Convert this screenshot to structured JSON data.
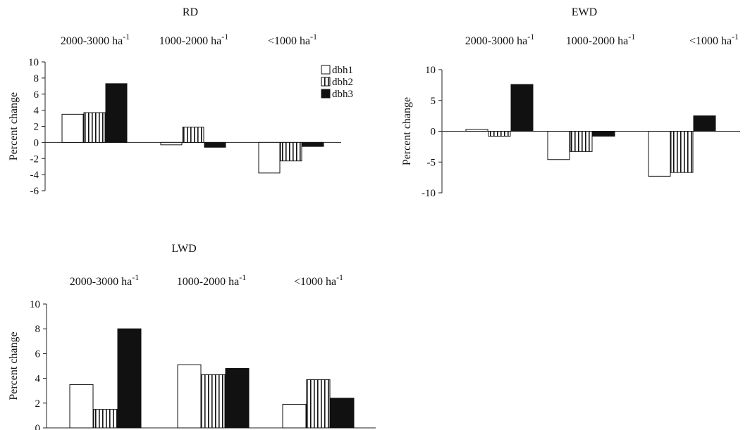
{
  "chart_data": [
    {
      "type": "bar",
      "title": "RD",
      "categories": [
        "2000-3000 ha",
        "1000-2000 ha",
        "<1000 ha"
      ],
      "category_superscript": "-1",
      "ylabel": "Percent change",
      "ylim": [
        -6,
        10
      ],
      "yticks": [
        -6,
        -4,
        -2,
        0,
        2,
        4,
        6,
        8,
        10
      ],
      "legend": "top-right",
      "series": [
        {
          "name": "dbh1",
          "fill": "white",
          "values": [
            3.5,
            -0.3,
            -3.8
          ]
        },
        {
          "name": "dbh2",
          "fill": "vertical-stripes",
          "values": [
            3.7,
            1.9,
            -2.3
          ]
        },
        {
          "name": "dbh3",
          "fill": "black",
          "values": [
            7.3,
            -0.6,
            -0.5
          ]
        }
      ]
    },
    {
      "type": "bar",
      "title": "EWD",
      "categories": [
        "2000-3000 ha",
        "1000-2000 ha",
        "<1000 ha"
      ],
      "category_superscript": "-1",
      "ylabel": "Percent change",
      "ylim": [
        -10,
        10
      ],
      "yticks": [
        -10,
        -5,
        0,
        5,
        10
      ],
      "series": [
        {
          "name": "dbh1",
          "fill": "white",
          "values": [
            0.3,
            -4.6,
            -7.3
          ]
        },
        {
          "name": "dbh2",
          "fill": "vertical-stripes",
          "values": [
            -0.8,
            -3.3,
            -6.7
          ]
        },
        {
          "name": "dbh3",
          "fill": "black",
          "values": [
            7.6,
            -0.8,
            2.5
          ]
        }
      ]
    },
    {
      "type": "bar",
      "title": "LWD",
      "categories": [
        "2000-3000 ha",
        "1000-2000 ha",
        "<1000 ha"
      ],
      "category_superscript": "-1",
      "ylabel": "Percent change",
      "ylim": [
        0,
        10
      ],
      "yticks": [
        0,
        2,
        4,
        6,
        8,
        10
      ],
      "series": [
        {
          "name": "dbh1",
          "fill": "white",
          "values": [
            3.5,
            5.1,
            1.9
          ]
        },
        {
          "name": "dbh2",
          "fill": "vertical-stripes",
          "values": [
            1.5,
            4.3,
            3.9
          ]
        },
        {
          "name": "dbh3",
          "fill": "black",
          "values": [
            8.0,
            4.8,
            2.4
          ]
        }
      ]
    }
  ]
}
